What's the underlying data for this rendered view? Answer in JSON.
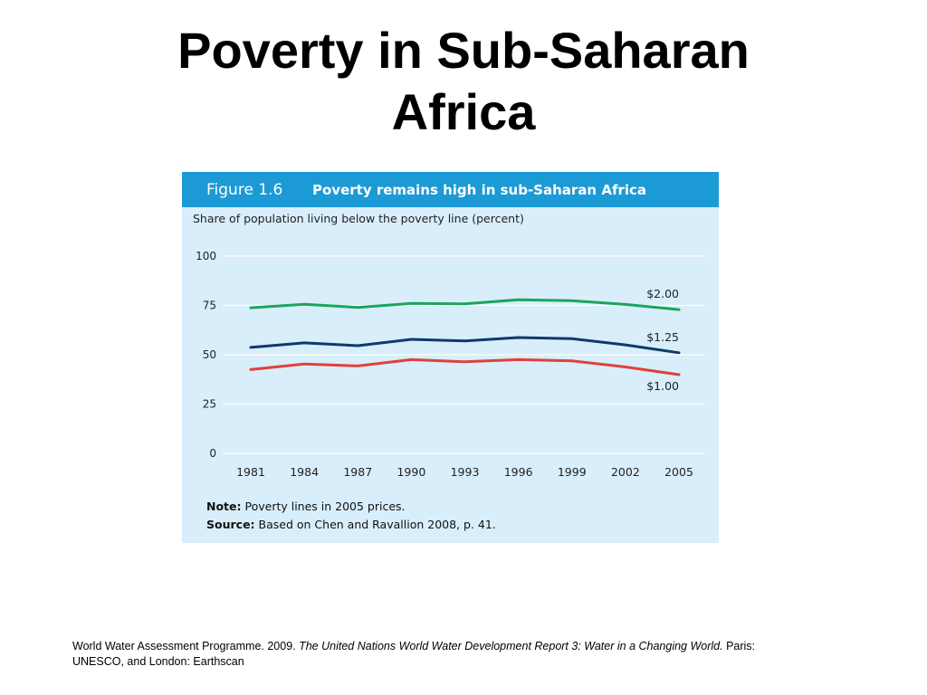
{
  "slide": {
    "title_line1": "Poverty in Sub-Saharan",
    "title_line2": "Africa"
  },
  "figure": {
    "number": "Figure 1.6",
    "title": "Poverty remains high in sub-Saharan Africa",
    "note_label": "Note:",
    "note_text": "Poverty lines in 2005 prices.",
    "source_label": "Source:",
    "source_text": "Based on Chen and Ravallion 2008, p. 41."
  },
  "citation": {
    "part1": "World Water Assessment Programme. 2009. ",
    "italic": "The United Nations World Water Development Report 3: Water in a Changing World.",
    "part2": " Paris: UNESCO, and London: Earthscan"
  },
  "colors": {
    "header_bg": "#1c9ad6",
    "panel_bg": "#d8eefa",
    "series_2_00": "#1ea45a",
    "series_1_25": "#0d3a6e",
    "series_1_00": "#e0403a"
  },
  "chart_data": {
    "type": "line",
    "title": "Poverty remains high in sub-Saharan Africa",
    "ylabel": "Share of population living below the poverty line (percent)",
    "xlabel": "",
    "ylim": [
      0,
      100
    ],
    "yticks": [
      0,
      25,
      50,
      75,
      100
    ],
    "grid": true,
    "x": [
      "1981",
      "1984",
      "1987",
      "1990",
      "1993",
      "1996",
      "1999",
      "2002",
      "2005"
    ],
    "series": [
      {
        "name": "$2.00",
        "color": "#1ea45a",
        "values": [
          73.8,
          75.6,
          74.0,
          76.0,
          75.8,
          77.9,
          77.4,
          75.5,
          72.9
        ]
      },
      {
        "name": "$1.25",
        "color": "#0d3a6e",
        "values": [
          53.7,
          56.0,
          54.6,
          57.8,
          57.0,
          58.7,
          58.1,
          55.0,
          51.0
        ]
      },
      {
        "name": "$1.00",
        "color": "#e0403a",
        "values": [
          42.5,
          45.3,
          44.3,
          47.5,
          46.4,
          47.5,
          46.9,
          43.8,
          39.9
        ]
      }
    ]
  }
}
